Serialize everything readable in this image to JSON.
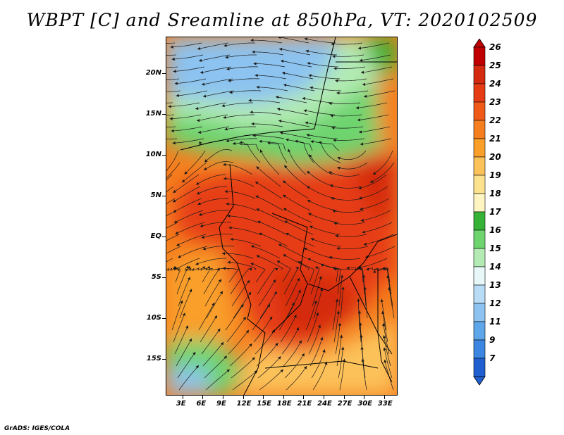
{
  "title": "WBPT [C] and Sreamline at 850hPa, VT: 2020102509",
  "credit": "GrADS: IGES/COLA",
  "map": {
    "y_axis": [
      {
        "label": "20N",
        "lat": 20
      },
      {
        "label": "15N",
        "lat": 15
      },
      {
        "label": "10N",
        "lat": 10
      },
      {
        "label": "5N",
        "lat": 5
      },
      {
        "label": "EQ",
        "lat": 0
      },
      {
        "label": "5S",
        "lat": -5
      },
      {
        "label": "10S",
        "lat": -10
      },
      {
        "label": "15S",
        "lat": -15
      }
    ],
    "x_axis": [
      {
        "label": "3E",
        "lon": 3
      },
      {
        "label": "6E",
        "lon": 6
      },
      {
        "label": "9E",
        "lon": 9
      },
      {
        "label": "12E",
        "lon": 12
      },
      {
        "label": "15E",
        "lon": 15
      },
      {
        "label": "18E",
        "lon": 18
      },
      {
        "label": "21E",
        "lon": 21
      },
      {
        "label": "24E",
        "lon": 24
      },
      {
        "label": "27E",
        "lon": 27
      },
      {
        "label": "30E",
        "lon": 30
      },
      {
        "label": "33E",
        "lon": 33
      }
    ],
    "lon_range": [
      0.5,
      35
    ],
    "lat_range": [
      -19.5,
      24.5
    ],
    "variable": "Wet-bulb potential temperature [C] with 850hPa streamlines"
  },
  "colorbar": {
    "levels": [
      "26",
      "25",
      "24",
      "23",
      "22",
      "21",
      "20",
      "19",
      "18",
      "17",
      "16",
      "15",
      "14",
      "13",
      "12",
      "11",
      "9",
      "7"
    ],
    "colors": [
      "#c00000",
      "#d42a10",
      "#e63c14",
      "#f05a18",
      "#f57e1e",
      "#f99f2a",
      "#fcc25a",
      "#fde28e",
      "#fff5c2",
      "#36b336",
      "#6ed46e",
      "#b4ebb4",
      "#e8f8f8",
      "#b8dcf5",
      "#8cc3f0",
      "#5ea6ea",
      "#3a86e0",
      "#1f5fd0"
    ],
    "extend": "both"
  }
}
